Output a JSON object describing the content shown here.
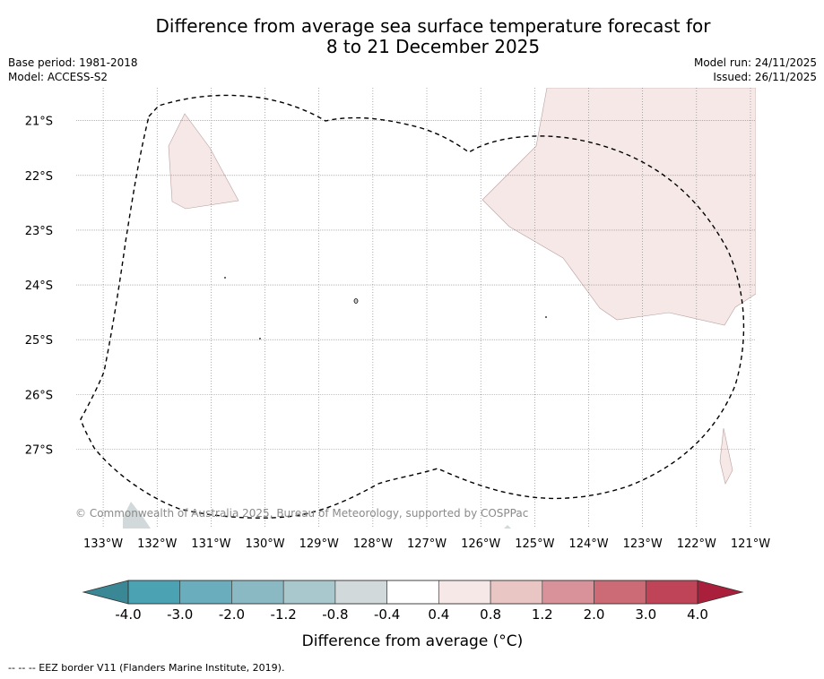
{
  "title_line1": "Difference from average sea surface temperature forecast for",
  "title_line2": "8 to 21 December 2025",
  "base_period": "Base period: 1981-2018",
  "model": "Model: ACCESS-S2",
  "model_run": "Model run: 24/11/2025",
  "issued": "Issued: 26/11/2025",
  "credit": "© Commonwealth of Australia 2025, Bureau of Meteorology, supported by COSPPac",
  "footnote": "-- -- -- EEZ border V11 (Flanders Marine Institute, 2019).",
  "map": {
    "lon_range": [
      -133.5,
      -120.9
    ],
    "lat_range": [
      -28.45,
      -20.4
    ],
    "lon_ticks": [
      "133°W",
      "132°W",
      "131°W",
      "130°W",
      "129°W",
      "128°W",
      "127°W",
      "126°W",
      "125°W",
      "124°W",
      "123°W",
      "122°W",
      "121°W"
    ],
    "lat_ticks": [
      "21°S",
      "22°S",
      "23°S",
      "24°S",
      "25°S",
      "26°S",
      "27°S"
    ]
  },
  "colorbar": {
    "title": "Difference from average (°C)",
    "tick_labels": [
      "-4.0",
      "-3.0",
      "-2.0",
      "-1.2",
      "-0.8",
      "-0.4",
      "0.4",
      "0.8",
      "1.2",
      "2.0",
      "3.0",
      "4.0"
    ],
    "colors": [
      "#4aa2b3",
      "#6aadbc",
      "#8ab9c4",
      "#a9c8cd",
      "#d2d9da",
      "#ffffff",
      "#f5e8e7",
      "#e9c5c4",
      "#da929a",
      "#cc6a76",
      "#bf4457"
    ],
    "under_color": "#3a8896",
    "over_color": "#aa1f3b"
  },
  "anomaly_colors": {
    "light_warm": "#f5e8e7",
    "light_cool": "#d2d9da"
  }
}
